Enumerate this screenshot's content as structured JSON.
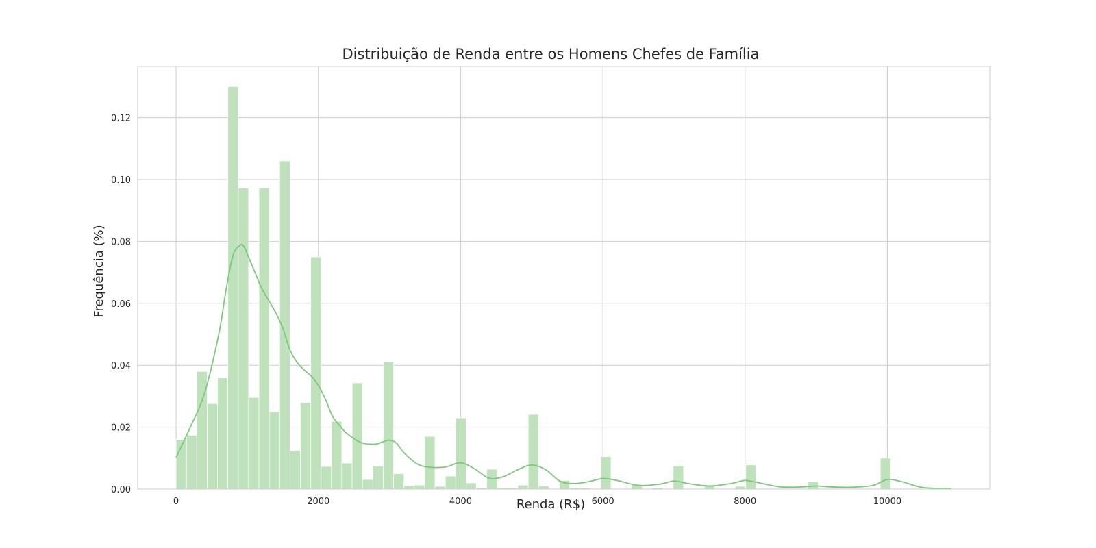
{
  "chart_data": {
    "type": "bar",
    "title": "Distribuição de Renda entre os Homens Chefes de Família",
    "xlabel": "Renda (R$)",
    "ylabel": "Frequência (%)",
    "xlim": [
      -540,
      11440
    ],
    "ylim": [
      0,
      0.1365
    ],
    "xticks": [
      0,
      2000,
      4000,
      6000,
      8000,
      10000
    ],
    "yticks": [
      0.0,
      0.02,
      0.04,
      0.06,
      0.08,
      0.1,
      0.12
    ],
    "ytick_labels": [
      "0.00",
      "0.02",
      "0.04",
      "0.06",
      "0.08",
      "0.10",
      "0.12"
    ],
    "grid": true,
    "colors": {
      "bar": "#bfe2bd",
      "bar_edge": "#ffffff",
      "kde": "#7bc87b",
      "grid": "#cccccc",
      "frame": "#cccccc"
    },
    "histogram": {
      "bin_start": 0,
      "bin_width": 145.6,
      "values": [
        0.016,
        0.0174,
        0.038,
        0.0276,
        0.0359,
        0.13,
        0.0972,
        0.0296,
        0.0972,
        0.025,
        0.106,
        0.0125,
        0.028,
        0.075,
        0.0073,
        0.0219,
        0.0084,
        0.0343,
        0.0031,
        0.0075,
        0.0411,
        0.005,
        0.0011,
        0.0013,
        0.017,
        0.0009,
        0.0042,
        0.023,
        0.002,
        0.0005,
        0.0064,
        0.0004,
        0.0004,
        0.0013,
        0.0241,
        0.001,
        0.0002,
        0.0028,
        0.0004,
        0.0004,
        0.0002,
        0.0105,
        0.0001,
        0.0002,
        0.0015,
        0.0001,
        0.0004,
        0.0001,
        0.0075,
        0.0001,
        0.0001,
        0.0013,
        0.0001,
        0.0001,
        0.0009,
        0.0078,
        0.0001,
        0.0001,
        0.0001,
        0.0001,
        0.0001,
        0.0023,
        0.0001,
        0.0001,
        0.0001,
        0.0001,
        0.0001,
        0.0001,
        0.01,
        0.0001,
        0.0001,
        0.0001,
        0.0001,
        0.0001,
        0.0001
      ]
    },
    "kde": {
      "x": [
        0,
        200,
        400,
        600,
        700,
        800,
        900,
        950,
        1000,
        1100,
        1200,
        1300,
        1400,
        1500,
        1600,
        1700,
        1800,
        1900,
        2000,
        2100,
        2200,
        2300,
        2400,
        2600,
        2800,
        2900,
        3000,
        3100,
        3200,
        3400,
        3600,
        3800,
        4000,
        4200,
        4400,
        4600,
        4800,
        5000,
        5200,
        5400,
        5600,
        5800,
        6000,
        6200,
        6500,
        6800,
        7000,
        7200,
        7500,
        7800,
        8000,
        8200,
        8500,
        8800,
        9000,
        9200,
        9500,
        9800,
        10000,
        10200,
        10500,
        10900
      ],
      "y": [
        0.0102,
        0.02,
        0.031,
        0.05,
        0.064,
        0.0755,
        0.0788,
        0.0785,
        0.076,
        0.0705,
        0.065,
        0.061,
        0.057,
        0.052,
        0.045,
        0.041,
        0.0385,
        0.0365,
        0.0335,
        0.029,
        0.0235,
        0.0205,
        0.018,
        0.015,
        0.0145,
        0.0152,
        0.0158,
        0.0148,
        0.0118,
        0.008,
        0.007,
        0.0072,
        0.0085,
        0.0065,
        0.0035,
        0.004,
        0.0062,
        0.0078,
        0.0062,
        0.0025,
        0.0018,
        0.0024,
        0.0034,
        0.0028,
        0.0012,
        0.0016,
        0.0026,
        0.0018,
        0.001,
        0.0018,
        0.0028,
        0.002,
        0.0007,
        0.0007,
        0.001,
        0.0007,
        0.0006,
        0.0012,
        0.0031,
        0.0024,
        0.0005,
        0.0002
      ]
    }
  }
}
